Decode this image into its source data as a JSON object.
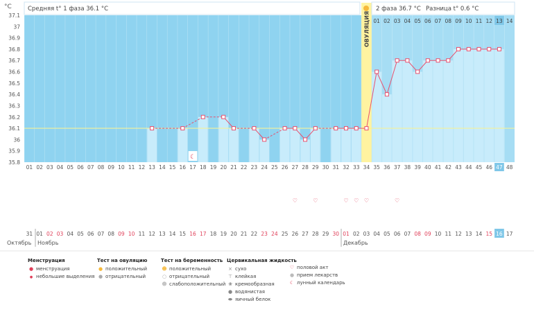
{
  "header": {
    "unit": "°C",
    "phase1": "Средняя t° 1 фаза 36.1 °C",
    "phase2": "2 фаза 36.7 °C",
    "diff": "Разница t° 0.6 °C",
    "ovulation_label": "ОВУЛЯЦИЯ"
  },
  "chart_data": {
    "type": "line",
    "title": "",
    "ylabel": "°C",
    "ylim": [
      35.8,
      37.1
    ],
    "yticks": [
      35.8,
      35.9,
      36,
      36.1,
      36.2,
      36.3,
      36.4,
      36.5,
      36.6,
      36.7,
      36.8,
      36.9,
      37,
      37.1
    ],
    "cover_line": 36.1,
    "ovulation_day": 34,
    "cycle_days": [
      "01",
      "02",
      "03",
      "04",
      "05",
      "06",
      "07",
      "08",
      "09",
      "10",
      "11",
      "12",
      "13",
      "14",
      "15",
      "16",
      "17",
      "18",
      "19",
      "20",
      "21",
      "22",
      "23",
      "24",
      "25",
      "26",
      "27",
      "28",
      "29",
      "30",
      "31",
      "32",
      "33",
      "34",
      "35",
      "36",
      "37",
      "38",
      "39",
      "40",
      "41",
      "42",
      "43",
      "44",
      "45",
      "46",
      "47",
      "48"
    ],
    "top_days": [
      "01",
      "02",
      "03",
      "04",
      "05",
      "06",
      "07",
      "08",
      "09",
      "10",
      "11",
      "12",
      "13",
      "14"
    ],
    "temps": [
      null,
      null,
      null,
      null,
      null,
      null,
      null,
      null,
      null,
      null,
      null,
      null,
      36.1,
      null,
      null,
      36.1,
      null,
      36.2,
      null,
      36.2,
      36.1,
      null,
      36.1,
      36.0,
      null,
      36.1,
      36.1,
      36.0,
      36.1,
      null,
      36.1,
      36.1,
      36.1,
      36.1,
      36.6,
      36.4,
      36.7,
      36.7,
      36.6,
      36.7,
      36.7,
      36.7,
      36.8,
      36.8,
      36.8,
      36.8,
      36.8,
      null
    ],
    "today_index": 46,
    "calendar_dates": [
      "31",
      "01",
      "02",
      "03",
      "04",
      "05",
      "06",
      "07",
      "08",
      "09",
      "10",
      "11",
      "12",
      "13",
      "14",
      "15",
      "16",
      "17",
      "18",
      "19",
      "20",
      "21",
      "22",
      "23",
      "24",
      "25",
      "26",
      "27",
      "28",
      "29",
      "30",
      "01",
      "02",
      "03",
      "04",
      "05",
      "06",
      "07",
      "08",
      "09",
      "10",
      "11",
      "12",
      "13",
      "14",
      "15",
      "16",
      "17"
    ],
    "red_dates_idx": [
      2,
      3,
      9,
      10,
      16,
      17,
      23,
      24,
      30,
      31,
      38,
      39,
      45,
      46
    ],
    "months": [
      "Октябрь",
      "Ноябрь",
      "Декабрь"
    ],
    "intercourse_idx": [
      26,
      28,
      31,
      32,
      33,
      36
    ],
    "lunar_idx": [
      16
    ]
  },
  "legend": {
    "menstruation": {
      "title": "Менструация",
      "items": [
        "менструация",
        "небольшие выделения"
      ]
    },
    "ovulation_test": {
      "title": "Тест на овуляцию",
      "items": [
        "положительный",
        "отрицательный"
      ]
    },
    "pregnancy_test": {
      "title": "Тест на беременность",
      "items": [
        "положительный",
        "отрицательный",
        "слабоположительный"
      ]
    },
    "cervical": {
      "title": "Цервикальная жидкость",
      "items": [
        "сухо",
        "клейкая",
        "кремообразная",
        "водянистая",
        "яичный белок"
      ]
    },
    "other": {
      "items": [
        "половой акт",
        "прием лекарств",
        "лунный календарь"
      ]
    },
    "colors": {
      "plot_bg": "#8fd3f0",
      "bar": "#c8ecfb",
      "line": "#e8506e",
      "ovulation": "#fff3a0",
      "today": "#7fc7e8"
    }
  }
}
